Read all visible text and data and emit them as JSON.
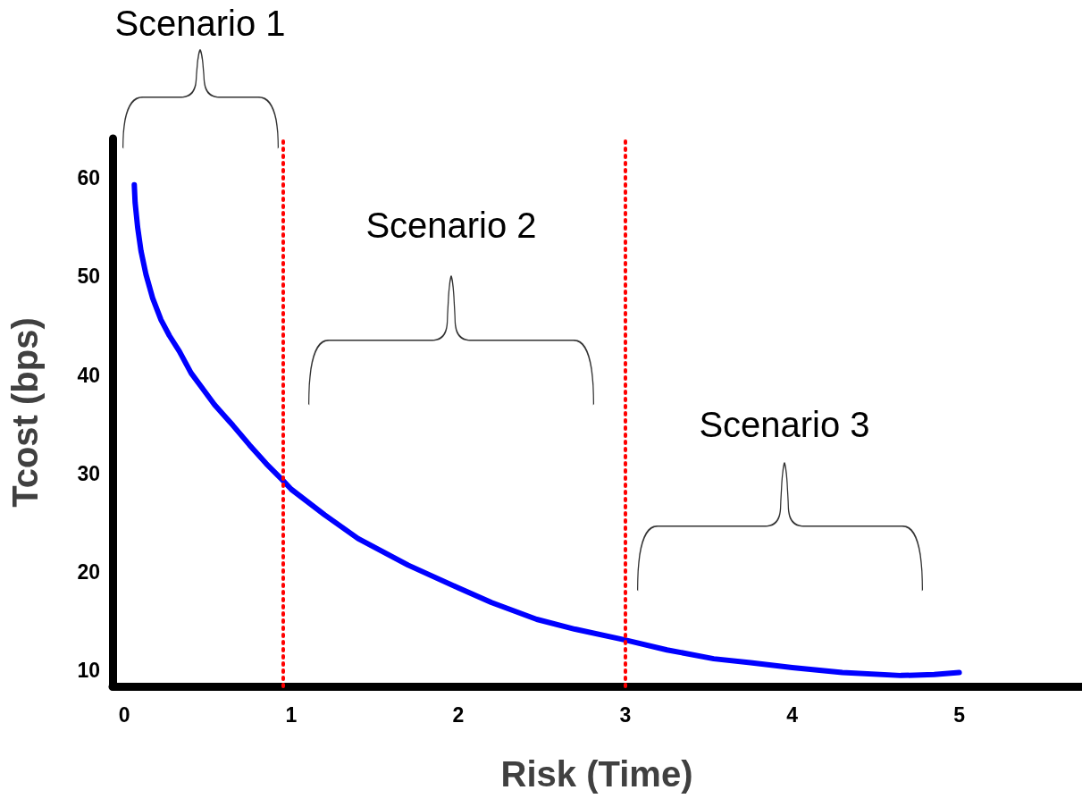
{
  "chart_data": {
    "type": "line",
    "xlabel": "Risk (Time)",
    "ylabel": "Tcost (bps)",
    "xlim": [
      -0.07,
      5.73
    ],
    "xticks": [
      0,
      1,
      2,
      3,
      4,
      5
    ],
    "ylim": [
      8.4,
      64
    ],
    "yticks": [
      10,
      20,
      30,
      40,
      50,
      60
    ],
    "grid": false,
    "marker": "none",
    "line_style": "solid",
    "series": [
      {
        "color": "#0000ff",
        "x": [
          0.06,
          0.065,
          0.08,
          0.1,
          0.13,
          0.17,
          0.22,
          0.27,
          0.33,
          0.4,
          0.47,
          0.54,
          0.65,
          0.75,
          0.85,
          0.95,
          1,
          1.2,
          1.4,
          1.7,
          2,
          2.2,
          2.47,
          2.7,
          3,
          3.25,
          3.53,
          3.75,
          4,
          4.3,
          4.65,
          4.85,
          5
        ],
        "values": [
          59.3,
          57.5,
          55,
          52.6,
          50.2,
          47.8,
          45.6,
          44,
          42.4,
          40.2,
          38.6,
          37,
          34.9,
          32.9,
          31,
          29.3,
          28.4,
          25.8,
          23.4,
          20.7,
          18.4,
          16.9,
          15.2,
          14.2,
          13.1,
          12.1,
          11.2,
          10.8,
          10.3,
          9.8,
          9.5,
          9.6,
          9.8
        ]
      }
    ],
    "ref_lines": [
      {
        "axis": "x",
        "value": 0.95,
        "color": "#ff0000",
        "line_style": "dotted"
      },
      {
        "axis": "x",
        "value": 3,
        "color": "#ff0000",
        "line_style": "dotted"
      }
    ],
    "annotations": [
      "Scenario 1",
      "Scenario 2",
      "Scenario 3"
    ]
  }
}
